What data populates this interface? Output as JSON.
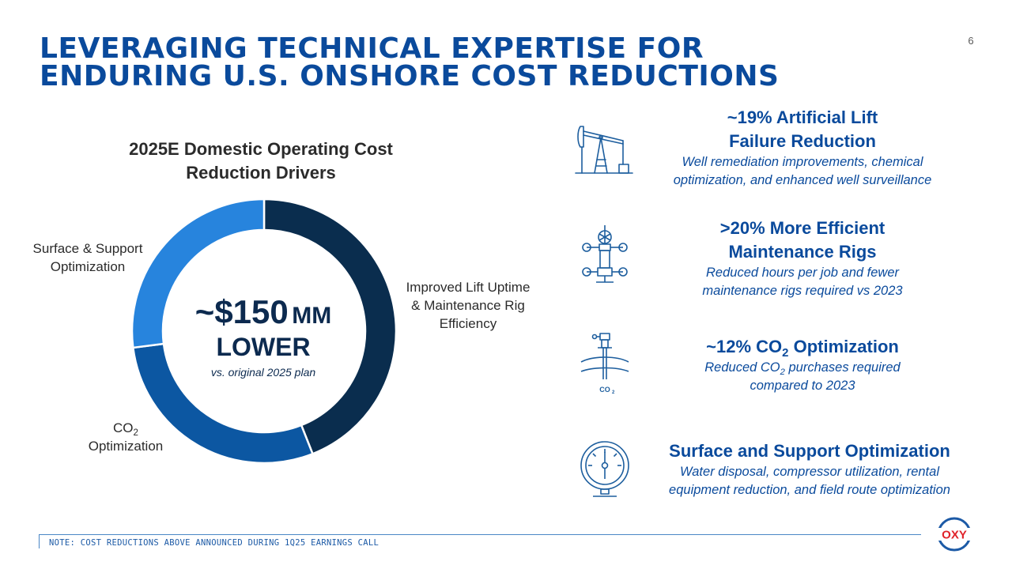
{
  "page_number": "6",
  "title": {
    "line1": "LEVERAGING TECHNICAL EXPERTISE FOR",
    "line2": "ENDURING U.S. ONSHORE COST REDUCTIONS"
  },
  "chart_data": {
    "type": "pie",
    "donut": true,
    "title": "2025E Domestic Operating Cost Reduction Drivers",
    "title_lines": [
      "2025E Domestic Operating Cost",
      "Reduction Drivers"
    ],
    "start_angle_deg": 0,
    "slices": [
      {
        "label": "Improved Lift Uptime & Maintenance Rig Efficiency",
        "label_lines": [
          "Improved Lift Uptime",
          "& Maintenance Rig",
          "Efficiency"
        ],
        "value": 44,
        "color": "#0a2d4e"
      },
      {
        "label": "CO2 Optimization",
        "label_lines": [
          "CO",
          "Optimization"
        ],
        "value": 29,
        "color": "#0c57a2"
      },
      {
        "label": "Surface & Support Optimization",
        "label_lines": [
          "Surface & Support",
          "Optimization"
        ],
        "value": 27,
        "color": "#2784dd"
      }
    ],
    "center": {
      "amount": "~$150",
      "unit": "MM",
      "qualifier": "LOWER",
      "note": "vs. original 2025 plan"
    }
  },
  "drivers": [
    {
      "icon": "pump-jack-icon",
      "heading_lines": [
        "~19% Artificial Lift",
        "Failure Reduction"
      ],
      "desc_lines": [
        "Well remediation improvements, chemical",
        "optimization, and enhanced well surveillance"
      ]
    },
    {
      "icon": "wellhead-valve-icon",
      "heading_lines": [
        ">20% More Efficient",
        "Maintenance Rigs"
      ],
      "desc_lines": [
        "Reduced hours per job and fewer",
        "maintenance rigs required vs 2023"
      ]
    },
    {
      "icon": "co2-injection-well-icon",
      "icon_label": "CO",
      "heading_pre": "~12% CO",
      "heading_sub": "2",
      "heading_post": " Optimization",
      "desc_pre": "Reduced CO",
      "desc_sub": "2",
      "desc_post": " purchases required",
      "desc_line2": "compared to 2023"
    },
    {
      "icon": "pressure-gauge-icon",
      "heading_lines": [
        "Surface and Support Optimization"
      ],
      "desc_lines": [
        "Water disposal, compressor utilization, rental",
        "equipment reduction, and field route optimization"
      ]
    }
  ],
  "footer_note": "NOTE: COST REDUCTIONS ABOVE ANNOUNCED DURING 1Q25 EARNINGS CALL",
  "logo_text": "OXY",
  "colors": {
    "title_blue": "#0a4a9c",
    "dark_navy": "#0a2d4e",
    "mid_blue": "#0c57a2",
    "light_blue": "#2784dd",
    "logo_red": "#e0232a"
  }
}
